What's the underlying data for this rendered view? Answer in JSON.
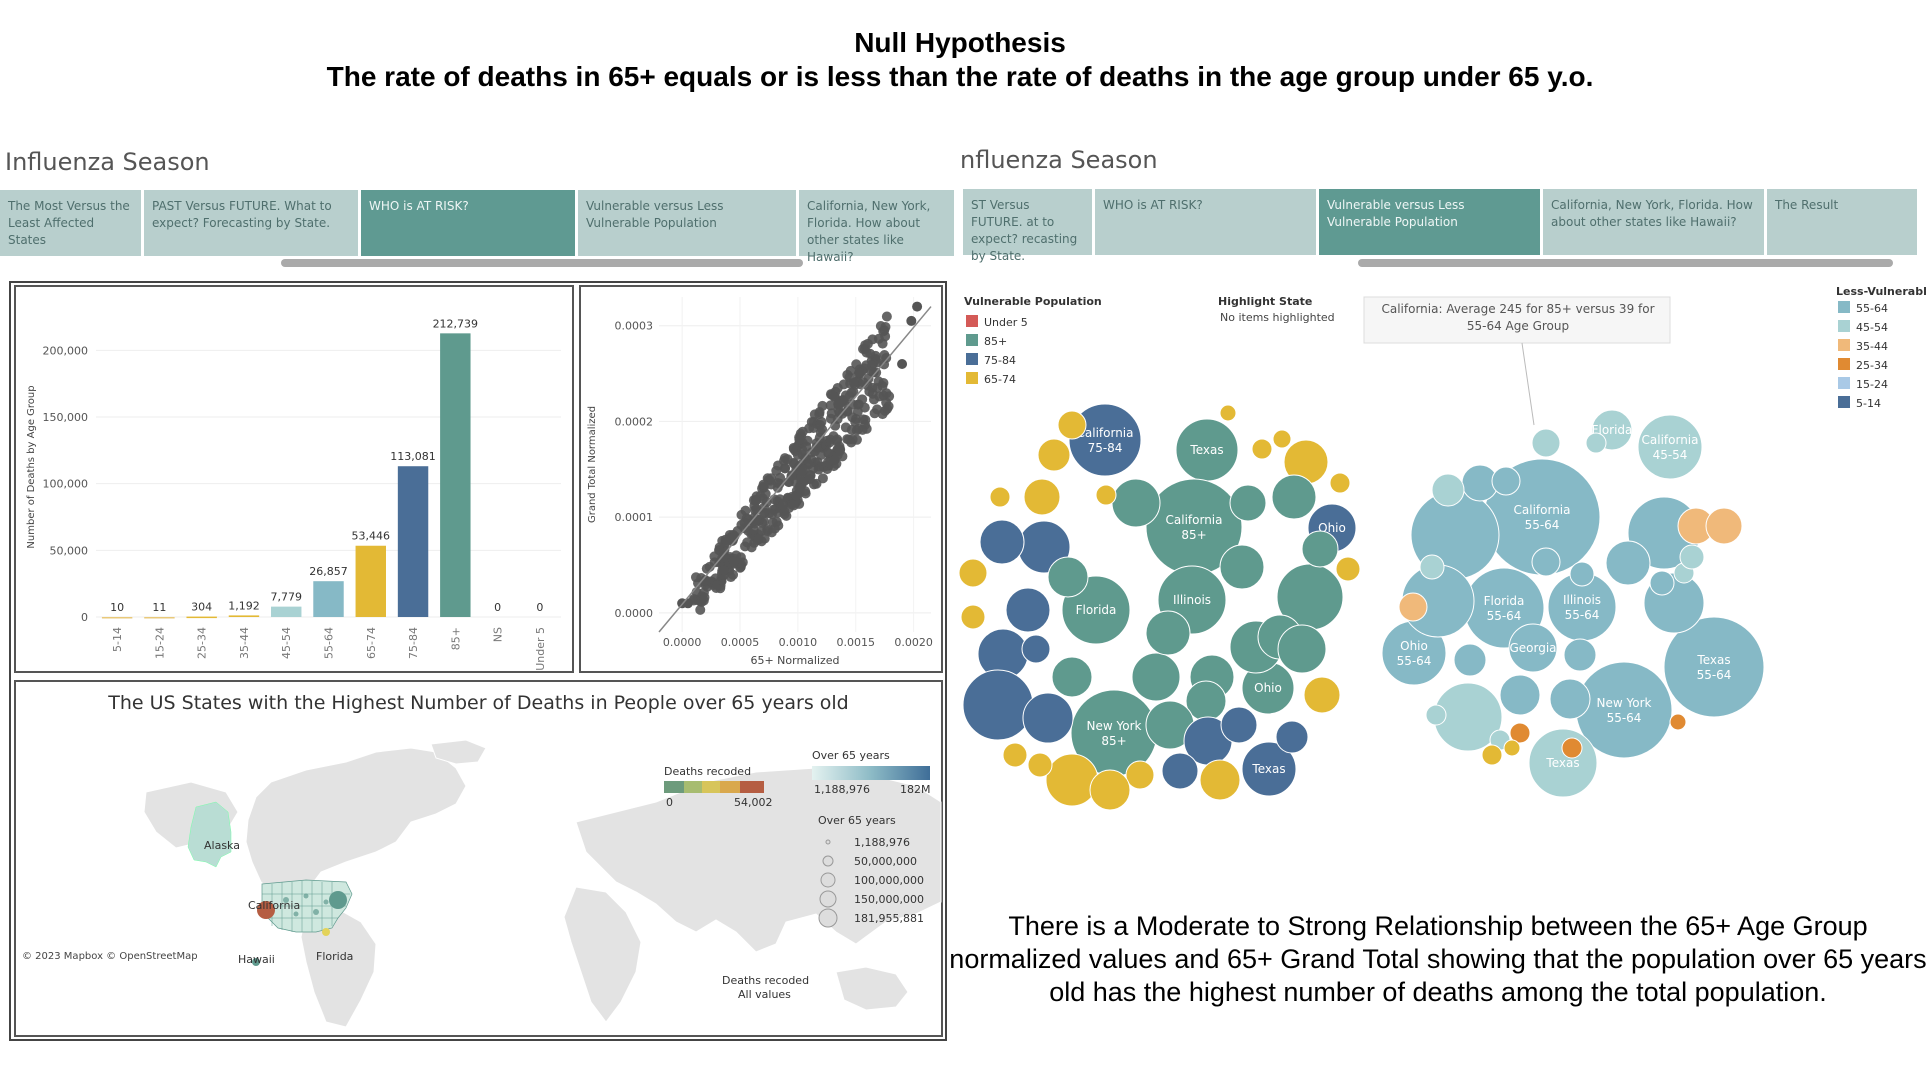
{
  "header": {
    "line1": "Null Hypothesis",
    "line2": "The rate of deaths in 65+ equals or is less than the rate of deaths in the age group under 65 y.o."
  },
  "left_panel": {
    "title": "Influenza Season",
    "tabs": [
      {
        "label": "The Most Versus the Least Affected States",
        "active": false
      },
      {
        "label": "PAST Versus FUTURE. What to expect? Forecasting by State.",
        "active": false
      },
      {
        "label": "WHO is AT RISK?",
        "active": true
      },
      {
        "label": "Vulnerable versus Less Vulnerable Population",
        "active": false
      },
      {
        "label": "California, New York, Florida. How about other states like Hawaii?",
        "active": false
      }
    ]
  },
  "right_panel": {
    "title": "nfluenza Season",
    "tabs": [
      {
        "label": "ST Versus FUTURE. at to expect? recasting by State.",
        "active": false
      },
      {
        "label": "WHO is AT RISK?",
        "active": false
      },
      {
        "label": "Vulnerable versus Less Vulnerable Population",
        "active": true
      },
      {
        "label": "California, New York, Florida. How about other states like Hawaii?",
        "active": false
      },
      {
        "label": "The Result",
        "active": false
      }
    ]
  },
  "colors": {
    "teal": "#5f9a8e",
    "dark_blue": "#4a6e97",
    "yellow": "#e3b935",
    "light_blue": "#86b9c6",
    "pale": "#a9d2d3",
    "tab_bg": "#b8cfcd",
    "tab_active": "#5f9a92"
  },
  "chart_data": [
    {
      "type": "bar",
      "ylabel": "Number of Deaths by Age Group",
      "categories": [
        "5-14",
        "15-24",
        "25-34",
        "35-44",
        "45-54",
        "55-64",
        "65-74",
        "75-84",
        "85+",
        "NS",
        "Under 5"
      ],
      "values": [
        10,
        11,
        304,
        1192,
        7779,
        26857,
        53446,
        113081,
        212739,
        0,
        0
      ],
      "value_labels": [
        "10",
        "11",
        "304",
        "1,192",
        "7,779",
        "26,857",
        "53,446",
        "113,081",
        "212,739",
        "0",
        "0"
      ],
      "bar_colors": [
        "#e9c97a",
        "#e9c97a",
        "#e3b935",
        "#e3b935",
        "#a9d2d3",
        "#86b9c6",
        "#e3b935",
        "#4a6e97",
        "#5f9a8e",
        "#ccc",
        "#ccc"
      ],
      "yticks": [
        "0",
        "50,000",
        "100,000",
        "150,000",
        "200,000"
      ],
      "ytick_values": [
        0,
        50000,
        100000,
        150000,
        200000
      ],
      "ylim": [
        0,
        225000
      ]
    },
    {
      "type": "scatter",
      "xlabel": "65+ Normalized",
      "ylabel": "Grand Total Normalized",
      "xticks": [
        "0.0000",
        "0.0005",
        "0.0010",
        "0.0015",
        "0.0020"
      ],
      "xtick_values": [
        0,
        0.0005,
        0.001,
        0.0015,
        0.002
      ],
      "yticks": [
        "0.0000",
        "0.0001",
        "0.0002",
        "0.0003"
      ],
      "ytick_values": [
        0,
        0.0001,
        0.0002,
        0.0003
      ],
      "xlim": [
        -0.0002,
        0.00215
      ],
      "ylim": [
        -2e-05,
        0.00033
      ],
      "trend": {
        "x": [
          -0.0002,
          0.00215
        ],
        "y": [
          -2e-05,
          0.00032
        ]
      },
      "point_color": "#555555"
    }
  ],
  "map": {
    "title": "The US States with the Highest Number of Deaths in People over 65 years old",
    "labels": {
      "alaska": "Alaska",
      "california": "California",
      "florida": "Florida",
      "hawaii": "Hawaii"
    },
    "attribution": "© 2023 Mapbox © OpenStreetMap",
    "legend_deaths": {
      "title": "Deaths recoded",
      "min": "0",
      "max": "54,002"
    },
    "legend_over65": {
      "title": "Over 65 years",
      "min": "1,188,976",
      "max": "182M"
    },
    "legend_sizes": {
      "title": "Over 65 years",
      "items": [
        "1,188,976",
        "50,000,000",
        "100,000,000",
        "150,000,000",
        "181,955,881"
      ]
    },
    "filter_box": {
      "title": "Deaths recoded",
      "value": "All values"
    }
  },
  "bubbles": {
    "vulnerable_legend": {
      "title": "Vulnerable Population",
      "items": [
        {
          "label": "Under 5",
          "color": "#d45a57"
        },
        {
          "label": "85+",
          "color": "#5f9a8e"
        },
        {
          "label": "75-84",
          "color": "#4a6e97"
        },
        {
          "label": "65-74",
          "color": "#e3b935"
        }
      ]
    },
    "highlight": {
      "title": "Highlight State",
      "value": "No items highlighted"
    },
    "tooltip": "California: Average 245 for 85+ versus 39 for 55-64 Age Group",
    "less_legend": {
      "title": "Less-Vulnerabl",
      "items": [
        {
          "label": "55-64",
          "color": "#86b9c6"
        },
        {
          "label": "45-54",
          "color": "#a9d2d3"
        },
        {
          "label": "35-44",
          "color": "#f0b97a"
        },
        {
          "label": "25-34",
          "color": "#e08a32"
        },
        {
          "label": "15-24",
          "color": "#a9c9e6"
        },
        {
          "label": "5-14",
          "color": "#4a6e97"
        }
      ]
    },
    "left_labels": [
      {
        "id": "ca7584",
        "t1": "California",
        "t2": "75-84"
      },
      {
        "id": "tx1",
        "t1": "Texas",
        "t2": ""
      },
      {
        "id": "ca85",
        "t1": "California",
        "t2": "85+"
      },
      {
        "id": "ohio1",
        "t1": "Ohio",
        "t2": ""
      },
      {
        "id": "fl",
        "t1": "Florida",
        "t2": ""
      },
      {
        "id": "il",
        "t1": "Illinois",
        "t2": ""
      },
      {
        "id": "ohio2",
        "t1": "Ohio",
        "t2": ""
      },
      {
        "id": "ny85",
        "t1": "New York",
        "t2": "85+"
      },
      {
        "id": "tx2",
        "t1": "Texas",
        "t2": ""
      }
    ],
    "right_labels": [
      {
        "id": "fl2",
        "t1": "Florida",
        "t2": ""
      },
      {
        "id": "ca4554",
        "t1": "California",
        "t2": "45-54"
      },
      {
        "id": "ca5564",
        "t1": "California",
        "t2": "55-64"
      },
      {
        "id": "fl5564",
        "t1": "Florida",
        "t2": "55-64"
      },
      {
        "id": "il5564",
        "t1": "Illinois",
        "t2": "55-64"
      },
      {
        "id": "oh5564",
        "t1": "Ohio",
        "t2": "55-64"
      },
      {
        "id": "ga",
        "t1": "Georgia",
        "t2": ""
      },
      {
        "id": "tx5564",
        "t1": "Texas",
        "t2": "55-64"
      },
      {
        "id": "ny5564",
        "t1": "New York",
        "t2": "55-64"
      },
      {
        "id": "tx3",
        "t1": "Texas",
        "t2": ""
      }
    ]
  },
  "conclusion": "There is a Moderate to Strong Relationship between the 65+ Age Group normalized values and 65+ Grand Total showing that the population over 65 years old has the highest number of deaths among the total population."
}
